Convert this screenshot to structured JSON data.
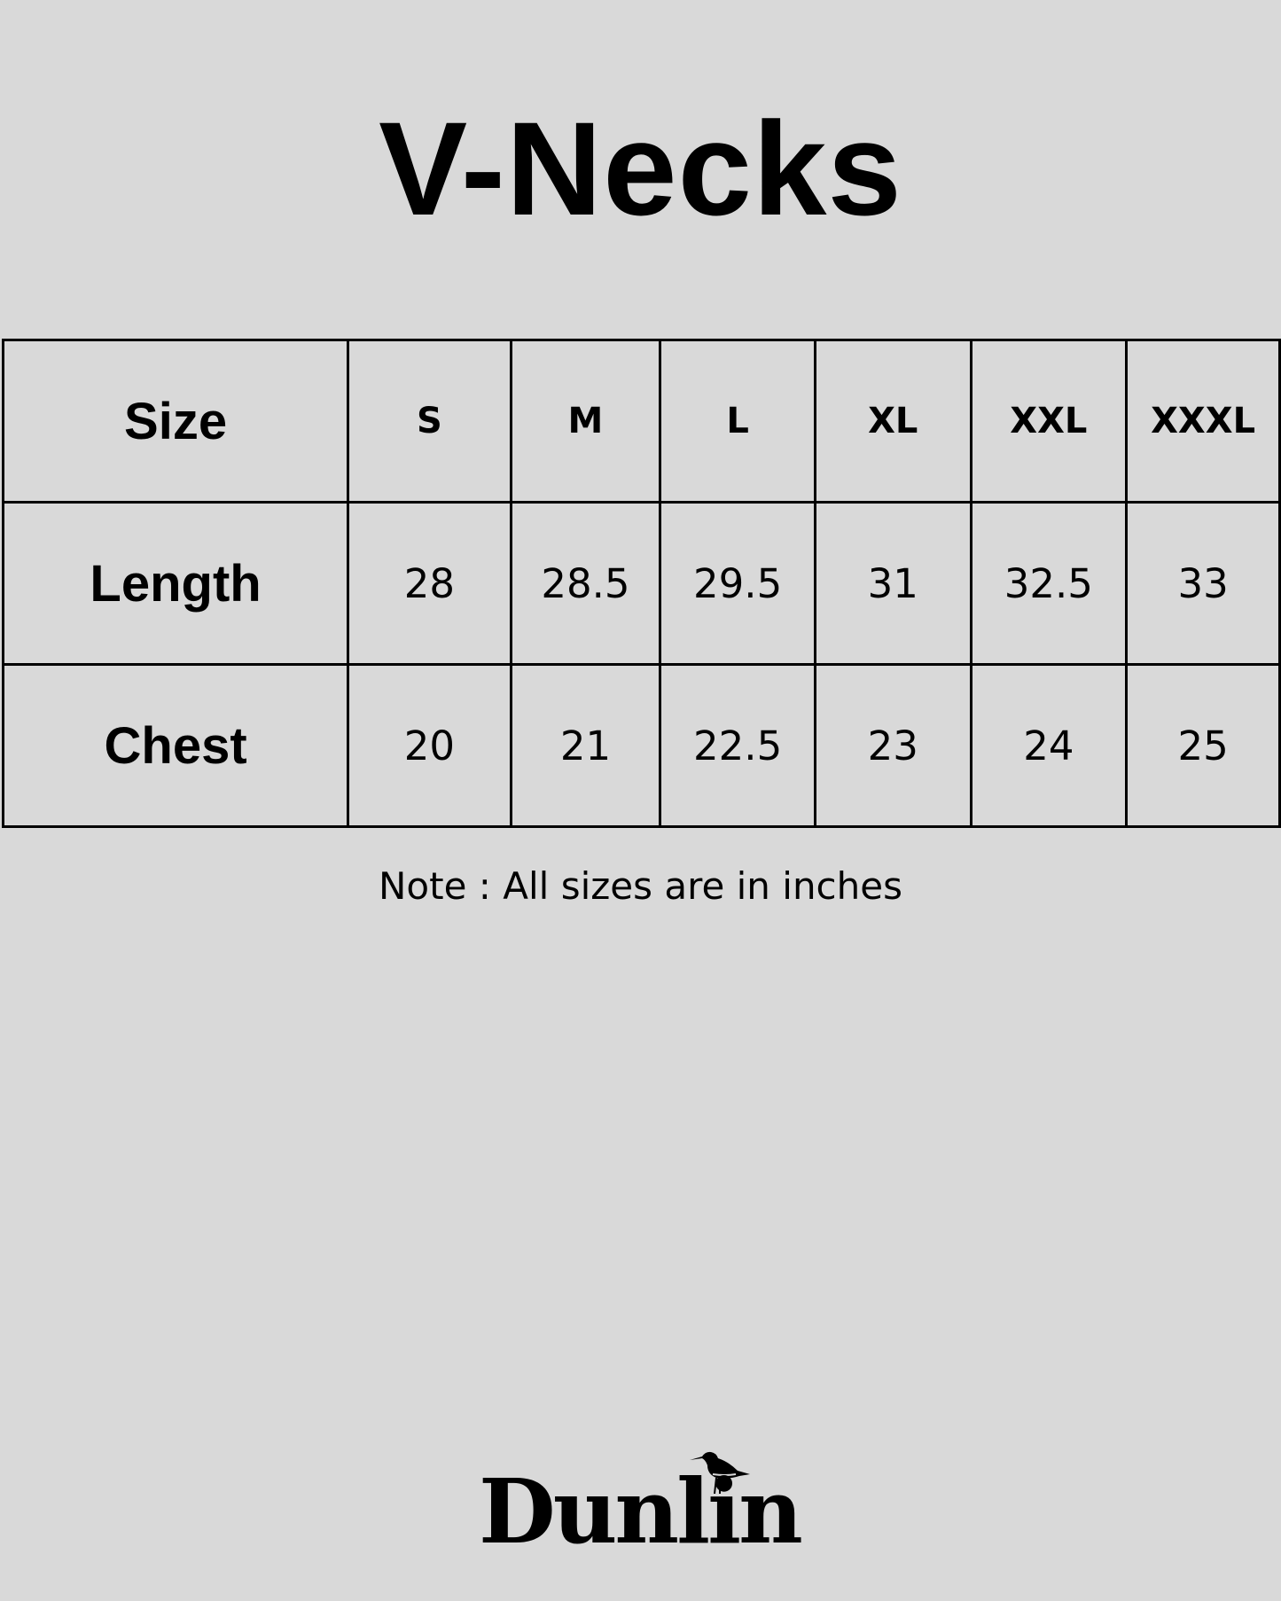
{
  "title": "V-Necks",
  "table": {
    "header": {
      "label": "Size",
      "sizes": [
        "S",
        "M",
        "L",
        "XL",
        "XXL",
        "XXXL"
      ]
    },
    "rows": [
      {
        "label": "Length",
        "values": [
          "28",
          "28.5",
          "29.5",
          "31",
          "32.5",
          "33"
        ]
      },
      {
        "label": "Chest",
        "values": [
          "20",
          "21",
          "22.5",
          "23",
          "24",
          "25"
        ]
      }
    ]
  },
  "note": "Note : All sizes are in inches",
  "logo": {
    "text": "Dunlin",
    "icon": "bird-icon"
  },
  "colors": {
    "background": "#d9d9d9",
    "text": "#000000"
  }
}
